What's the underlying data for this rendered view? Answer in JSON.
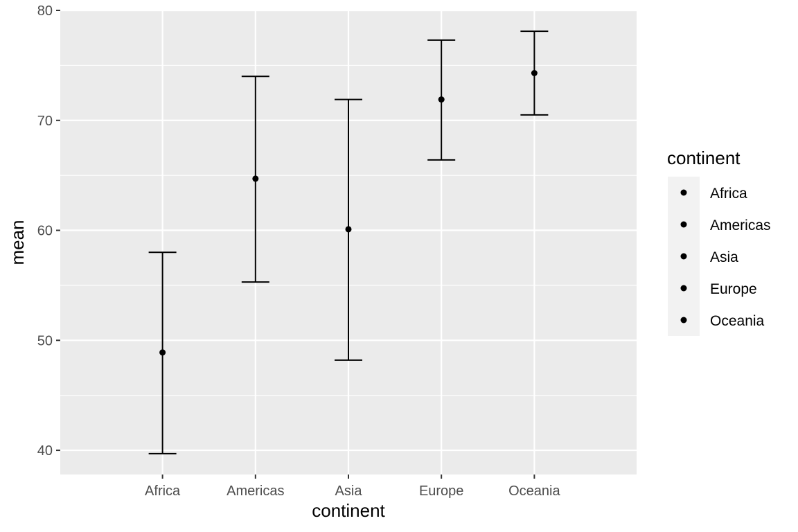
{
  "chart_data": {
    "type": "errorbar",
    "xlabel": "continent",
    "ylabel": "mean",
    "categories": [
      "Africa",
      "Americas",
      "Asia",
      "Europe",
      "Oceania"
    ],
    "series": [
      {
        "mean": [
          48.9,
          64.7,
          60.1,
          71.9,
          74.3
        ],
        "lower": [
          39.7,
          55.3,
          48.2,
          66.4,
          70.5
        ],
        "upper": [
          58.0,
          74.0,
          71.9,
          77.3,
          78.1
        ]
      }
    ],
    "ylim": [
      37.8,
      80.0
    ],
    "yticks": [
      40,
      50,
      60,
      70,
      80
    ],
    "grid": true,
    "legend": {
      "title": "continent",
      "placement": "right",
      "entries": [
        "Africa",
        "Americas",
        "Asia",
        "Europe",
        "Oceania"
      ]
    },
    "colors": {
      "panel_bg": "#ebebeb",
      "gridline": "#ffffff",
      "mark": "#000000",
      "tick_text": "#4d4d4d",
      "legend_key_bg": "#f2f2f2"
    }
  }
}
